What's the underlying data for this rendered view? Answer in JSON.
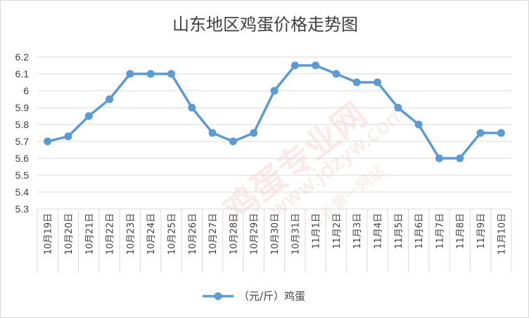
{
  "chart_data": {
    "type": "line",
    "title": "山东地区鸡蛋价格走势图",
    "categories": [
      "10月19日",
      "10月20日",
      "10月21日",
      "10月22日",
      "10月23日",
      "10月24日",
      "10月25日",
      "10月26日",
      "10月27日",
      "10月28日",
      "10月29日",
      "10月30日",
      "10月31日",
      "11月1日",
      "11月2日",
      "11月3日",
      "11月4日",
      "11月5日",
      "11月6日",
      "11月7日",
      "11月8日",
      "11月9日",
      "11月10日"
    ],
    "series": [
      {
        "name": "（元/斤）鸡蛋",
        "values": [
          5.7,
          5.73,
          5.85,
          5.95,
          6.1,
          6.1,
          6.1,
          5.9,
          5.75,
          5.7,
          5.75,
          6.0,
          6.15,
          6.15,
          6.1,
          6.05,
          6.05,
          5.9,
          5.8,
          5.6,
          5.6,
          5.75,
          5.75
        ]
      }
    ],
    "ylim": [
      5.3,
      6.2
    ],
    "yticks": [
      "5.3",
      "5.4",
      "5.5",
      "5.6",
      "5.7",
      "5.8",
      "5.9",
      "6",
      "6.1",
      "6.2"
    ],
    "grid": true,
    "legend": "bottom",
    "colors": {
      "line": "#5b9bd5",
      "grid": "#d9d9d9",
      "text": "#404040"
    }
  },
  "watermark": {
    "main": "鸡蛋专业网",
    "url": "www.jdzyw.com",
    "sub": "行业第一网站"
  }
}
